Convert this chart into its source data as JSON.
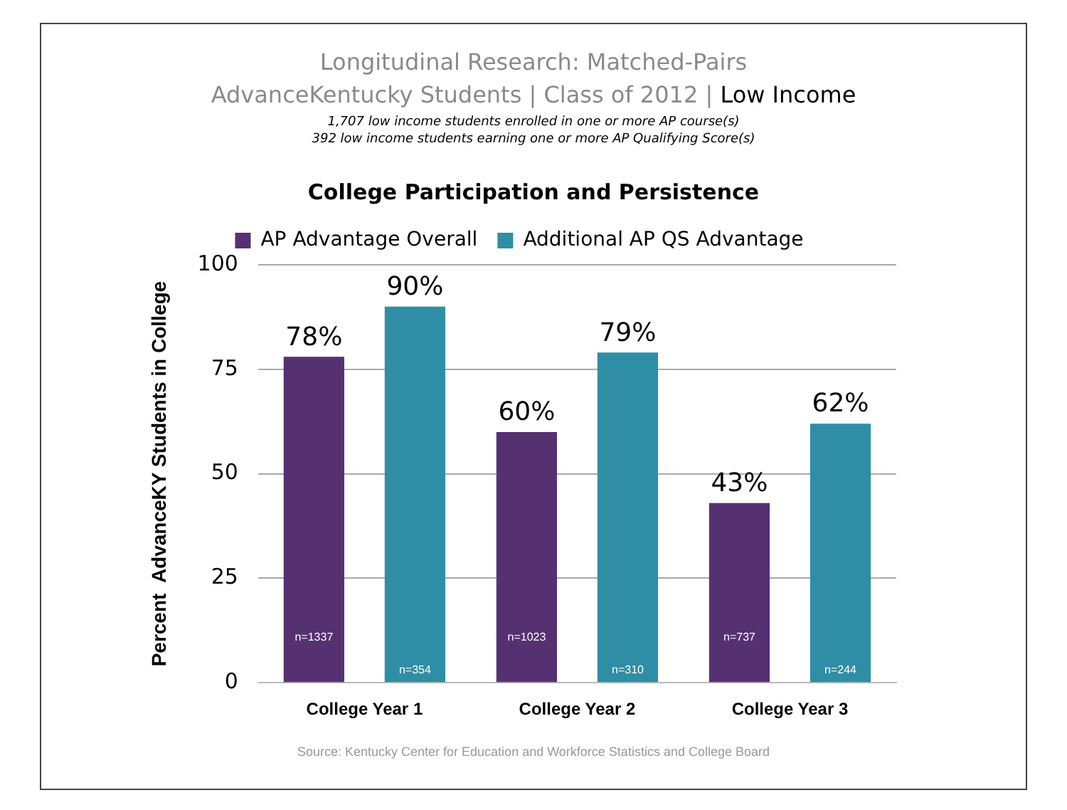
{
  "chart_data": {
    "type": "bar",
    "title": "Longitudinal Research: Matched-Pairs",
    "subtitle": "AdvanceKentucky Students | Class of 2012 | Low Income",
    "ylabel": "Percent  AdvanceKY Students in College",
    "categories": [
      "College Year 1",
      "College Year 2",
      "College Year 3"
    ],
    "series": [
      {
        "name": "AP Advantage Overall",
        "color": "#553171",
        "values": [
          78,
          60,
          43
        ],
        "value_labels": [
          "78%",
          "60%",
          "43%"
        ]
      },
      {
        "name": "Additional AP QS Advantage",
        "color": "#2f8ea5",
        "values": [
          90,
          79,
          62
        ],
        "value_labels": [
          "90%",
          "79%",
          "62%"
        ]
      }
    ],
    "ylim": [
      0,
      100
    ],
    "yticks": [
      0,
      25,
      50,
      75,
      100
    ],
    "grid": "y",
    "legend": "top",
    "annotations": [
      "1,707 low income students enrolled in one or more AP course(s)",
      "392 low income students earning one or more AP Qualifying Score(s)",
      "College Participation and Persistence",
      "Source: Kentucky Center for Education  and Workforce Statistics and College Board",
      "n=1337",
      "n=354",
      "n=1023",
      "n=310",
      "n=737",
      "n=244"
    ]
  }
}
